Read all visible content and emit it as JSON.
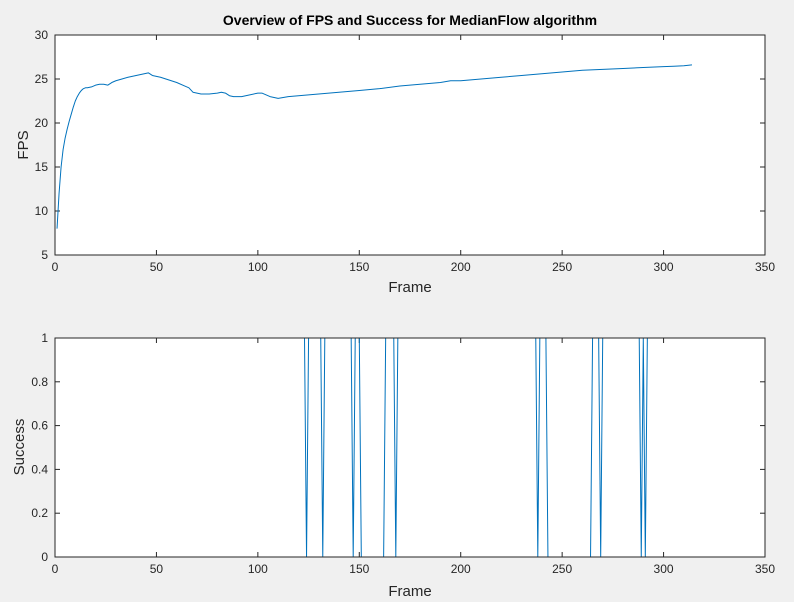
{
  "figure": {
    "background": "#f0f0f0",
    "axes_background": "#ffffff",
    "axes_color": "#262626",
    "line_color": "#0072bd"
  },
  "chart_data": [
    {
      "type": "line",
      "title": "Overview of FPS and Success for MedianFlow algorithm",
      "xlabel": "Frame",
      "ylabel": "FPS",
      "xlim": [
        0,
        350
      ],
      "ylim": [
        5,
        30
      ],
      "xticks": [
        0,
        50,
        100,
        150,
        200,
        250,
        300,
        350
      ],
      "yticks": [
        5,
        10,
        15,
        20,
        25,
        30
      ],
      "grid": false,
      "series": [
        {
          "x": [
            1,
            2,
            3,
            4,
            5,
            6,
            7,
            8,
            9,
            10,
            11,
            12,
            13,
            14,
            15,
            16,
            18,
            20,
            22,
            24,
            26,
            28,
            30,
            33,
            36,
            40,
            44,
            46,
            48,
            52,
            56,
            60,
            64,
            66,
            68,
            72,
            76,
            80,
            82,
            84,
            86,
            88,
            92,
            96,
            100,
            102,
            104,
            106,
            108,
            110,
            115,
            120,
            130,
            140,
            150,
            160,
            170,
            180,
            190,
            195,
            200,
            210,
            220,
            230,
            240,
            250,
            260,
            270,
            280,
            290,
            300,
            305,
            310,
            314
          ],
          "y": [
            8,
            12,
            15,
            17,
            18.3,
            19.3,
            20.2,
            21,
            21.8,
            22.5,
            23,
            23.4,
            23.7,
            23.9,
            24,
            24,
            24.1,
            24.3,
            24.4,
            24.4,
            24.3,
            24.6,
            24.8,
            25,
            25.2,
            25.4,
            25.6,
            25.7,
            25.4,
            25.2,
            24.9,
            24.6,
            24.2,
            24,
            23.5,
            23.3,
            23.3,
            23.4,
            23.5,
            23.4,
            23.1,
            23.0,
            23.0,
            23.2,
            23.4,
            23.4,
            23.2,
            23.0,
            22.9,
            22.8,
            23.0,
            23.1,
            23.3,
            23.5,
            23.7,
            23.9,
            24.2,
            24.4,
            24.6,
            24.8,
            24.8,
            25.0,
            25.2,
            25.4,
            25.6,
            25.8,
            26.0,
            26.1,
            26.2,
            26.3,
            26.4,
            26.45,
            26.5,
            26.6
          ]
        }
      ]
    },
    {
      "type": "line",
      "title": "",
      "xlabel": "Frame",
      "ylabel": "Success",
      "xlim": [
        0,
        350
      ],
      "ylim": [
        0,
        1
      ],
      "xticks": [
        0,
        50,
        100,
        150,
        200,
        250,
        300,
        350
      ],
      "yticks": [
        0,
        0.2,
        0.4,
        0.6,
        0.8,
        1
      ],
      "grid": false,
      "series": [
        {
          "x": [
            1,
            123,
            124,
            125,
            131,
            132,
            133,
            146,
            147,
            148,
            149,
            150,
            151,
            152,
            162,
            163,
            164,
            167,
            168,
            169,
            237,
            238,
            239,
            241,
            242,
            243,
            264,
            265,
            266,
            268,
            269,
            270,
            288,
            289,
            290,
            291,
            292,
            314
          ],
          "y": [
            1,
            1,
            0,
            1,
            1,
            0,
            1,
            1,
            0,
            1,
            1,
            1,
            0,
            0,
            0,
            1,
            1,
            1,
            0,
            1,
            1,
            0,
            1,
            1,
            1,
            0,
            0,
            1,
            1,
            1,
            0,
            1,
            1,
            0,
            1,
            0,
            1,
            1
          ]
        }
      ]
    }
  ]
}
